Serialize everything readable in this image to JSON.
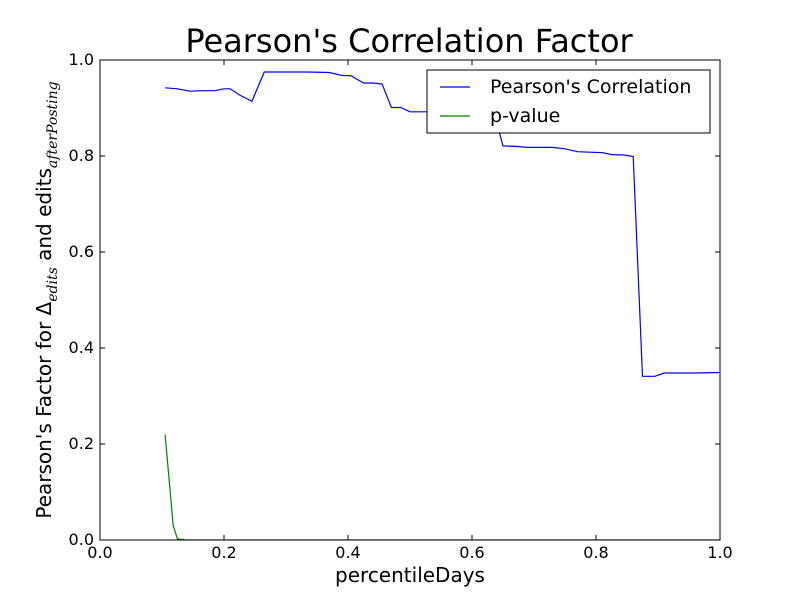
{
  "chart_data": {
    "type": "line",
    "title": "Pearson's Correlation Factor",
    "xlabel": "percentileDays",
    "ylabel": {
      "prefix": "Pearson's Factor for Δ",
      "sub1": "edits",
      "middle": " and edits",
      "sub2": "afterPosting"
    },
    "xlim": [
      0.0,
      1.0
    ],
    "ylim": [
      0.0,
      1.0
    ],
    "xticks": [
      "0.0",
      "0.2",
      "0.4",
      "0.6",
      "0.8",
      "1.0"
    ],
    "yticks": [
      "0.0",
      "0.2",
      "0.4",
      "0.6",
      "0.8",
      "1.0"
    ],
    "grid": false,
    "legend_position": "top-right",
    "series": [
      {
        "name": "Pearson's Correlation",
        "color": "#0000ff",
        "x": [
          0.105,
          0.125,
          0.145,
          0.165,
          0.185,
          0.2,
          0.21,
          0.225,
          0.245,
          0.265,
          0.285,
          0.31,
          0.335,
          0.37,
          0.39,
          0.405,
          0.425,
          0.44,
          0.455,
          0.47,
          0.485,
          0.5,
          0.515,
          0.53,
          0.545,
          0.56,
          0.575,
          0.595,
          0.615,
          0.635,
          0.65,
          0.67,
          0.69,
          0.71,
          0.73,
          0.75,
          0.77,
          0.79,
          0.81,
          0.825,
          0.845,
          0.86,
          0.875,
          0.88,
          0.895,
          0.91,
          0.93,
          0.96,
          1.0
        ],
        "y": [
          0.942,
          0.94,
          0.935,
          0.936,
          0.936,
          0.94,
          0.94,
          0.927,
          0.914,
          0.975,
          0.975,
          0.975,
          0.975,
          0.974,
          0.968,
          0.967,
          0.952,
          0.952,
          0.95,
          0.901,
          0.901,
          0.892,
          0.892,
          0.892,
          0.892,
          0.892,
          0.892,
          0.892,
          0.892,
          0.892,
          0.821,
          0.82,
          0.818,
          0.818,
          0.818,
          0.815,
          0.809,
          0.808,
          0.807,
          0.803,
          0.802,
          0.799,
          0.341,
          0.341,
          0.341,
          0.348,
          0.348,
          0.348,
          0.349
        ]
      },
      {
        "name": "p-value",
        "color": "#008000",
        "x": [
          0.105,
          0.118,
          0.125,
          0.14,
          0.2,
          0.4,
          0.6,
          0.8,
          1.0
        ],
        "y": [
          0.22,
          0.03,
          0.002,
          0.0,
          0.0,
          0.0,
          0.0,
          0.0,
          0.0
        ]
      }
    ]
  }
}
